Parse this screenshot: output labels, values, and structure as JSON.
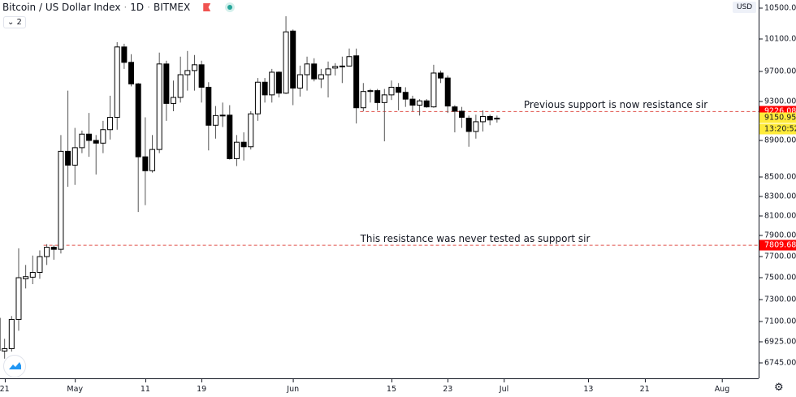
{
  "header": {
    "title": "Bitcoin / US Dollar Index",
    "interval": "1D",
    "exchange": "BITMEX",
    "separator": "·",
    "collapse_label": "⌄ 2"
  },
  "price_axis": {
    "currency": "USD"
  },
  "colors": {
    "up_fill": "#ffffff",
    "down_fill": "#000000",
    "outline": "#000000",
    "line": "#e0524b",
    "label_red": "#ff0000",
    "label_yellow": "#ffeb3b"
  },
  "chart_data": {
    "type": "candlestick",
    "title": "Bitcoin / US Dollar Index · 1D · BITMEX",
    "scale": "log",
    "ylim": [
      6650,
      10560
    ],
    "y_ticks": [
      10500,
      10100,
      9700,
      9300,
      8900,
      8500,
      8300,
      8100,
      7900,
      7700,
      7500,
      7300,
      7100,
      6925,
      6745
    ],
    "y_tick_labels": [
      "10500.00",
      "10100.00",
      "9700.00",
      "9300.00",
      "8900.00",
      "8500.00",
      "8300.00",
      "8100.00",
      "7900.00",
      "7700.00",
      "7500.00",
      "7300.00",
      "7100.00",
      "6925.00",
      "6745.00"
    ],
    "x_ticks": [
      {
        "day": 1,
        "label": "21"
      },
      {
        "day": 11,
        "label": "May"
      },
      {
        "day": 21,
        "label": "11"
      },
      {
        "day": 29,
        "label": "19"
      },
      {
        "day": 42,
        "label": "Jun"
      },
      {
        "day": 56,
        "label": "15"
      },
      {
        "day": 64,
        "label": "23"
      },
      {
        "day": 72,
        "label": "Jul"
      },
      {
        "day": 84,
        "label": "13"
      },
      {
        "day": 92,
        "label": "21"
      },
      {
        "day": 103,
        "label": "Aug"
      }
    ],
    "x_range_days": [
      0,
      107
    ],
    "candles_start": "Apr 20",
    "ohlc": [
      [
        7130,
        7150,
        6840,
        6850
      ],
      [
        6845,
        6950,
        6780,
        6865
      ],
      [
        6865,
        7150,
        6840,
        7120
      ],
      [
        7120,
        7780,
        7020,
        7500
      ],
      [
        7490,
        7620,
        7400,
        7510
      ],
      [
        7505,
        7710,
        7440,
        7550
      ],
      [
        7550,
        7760,
        7490,
        7700
      ],
      [
        7700,
        7820,
        7620,
        7790
      ],
      [
        7790,
        7810,
        7670,
        7770
      ],
      [
        7770,
        8960,
        7730,
        8780
      ],
      [
        8780,
        9470,
        8400,
        8630
      ],
      [
        8630,
        9040,
        8420,
        8820
      ],
      [
        8820,
        9010,
        8760,
        8970
      ],
      [
        8970,
        9210,
        8720,
        8900
      ],
      [
        8900,
        8960,
        8530,
        8870
      ],
      [
        8870,
        9120,
        8760,
        9020
      ],
      [
        9020,
        9410,
        8910,
        9160
      ],
      [
        9160,
        10060,
        9020,
        10000
      ],
      [
        10000,
        10040,
        9730,
        9810
      ],
      [
        9810,
        9910,
        9520,
        9550
      ],
      [
        9550,
        9560,
        8140,
        8720
      ],
      [
        8720,
        9160,
        8210,
        8570
      ],
      [
        8570,
        8960,
        8550,
        8800
      ],
      [
        8800,
        9930,
        8760,
        9790
      ],
      [
        9790,
        9830,
        9120,
        9320
      ],
      [
        9320,
        9590,
        9230,
        9390
      ],
      [
        9390,
        9880,
        9330,
        9660
      ],
      [
        9660,
        9950,
        9470,
        9710
      ],
      [
        9710,
        9900,
        9470,
        9780
      ],
      [
        9780,
        9830,
        9330,
        9510
      ],
      [
        9510,
        9570,
        8790,
        9070
      ],
      [
        9070,
        9290,
        8920,
        9180
      ],
      [
        9180,
        9330,
        9050,
        9185
      ],
      [
        9185,
        9300,
        8690,
        8700
      ],
      [
        8700,
        8960,
        8620,
        8880
      ],
      [
        8880,
        8990,
        8680,
        8830
      ],
      [
        8830,
        9230,
        8800,
        9200
      ],
      [
        9200,
        9620,
        9120,
        9570
      ],
      [
        9570,
        9620,
        9330,
        9420
      ],
      [
        9420,
        9730,
        9330,
        9690
      ],
      [
        9690,
        9700,
        9390,
        9440
      ],
      [
        9440,
        10390,
        9430,
        10190
      ],
      [
        10200,
        10220,
        9300,
        9500
      ],
      [
        9500,
        9770,
        9400,
        9660
      ],
      [
        9660,
        9880,
        9470,
        9790
      ],
      [
        9790,
        9860,
        9580,
        9610
      ],
      [
        9610,
        9730,
        9500,
        9660
      ],
      [
        9660,
        9820,
        9390,
        9730
      ],
      [
        9740,
        9800,
        9650,
        9760
      ],
      [
        9760,
        9880,
        9560,
        9765
      ],
      [
        9765,
        9980,
        9760,
        9880
      ],
      [
        9890,
        9980,
        9090,
        9270
      ],
      [
        9270,
        9560,
        9230,
        9460
      ],
      [
        9460,
        9490,
        9330,
        9470
      ],
      [
        9470,
        9490,
        9240,
        9330
      ],
      [
        9330,
        9490,
        8890,
        9420
      ],
      [
        9420,
        9590,
        9360,
        9510
      ],
      [
        9510,
        9560,
        9240,
        9450
      ],
      [
        9450,
        9510,
        9280,
        9370
      ],
      [
        9370,
        9410,
        9230,
        9300
      ],
      [
        9300,
        9370,
        9180,
        9350
      ],
      [
        9350,
        9370,
        9270,
        9280
      ],
      [
        9280,
        9780,
        9270,
        9680
      ],
      [
        9680,
        9710,
        9560,
        9620
      ],
      [
        9620,
        9650,
        9210,
        9290
      ],
      [
        9280,
        9300,
        8990,
        9230
      ],
      [
        9230,
        9280,
        9040,
        9160
      ],
      [
        9150,
        9180,
        8830,
        9000
      ],
      [
        9000,
        9190,
        8920,
        9110
      ],
      [
        9110,
        9240,
        9000,
        9170
      ],
      [
        9170,
        9190,
        9070,
        9130
      ],
      [
        9140,
        9180,
        9100,
        9150.95
      ]
    ],
    "horizontal_lines": [
      {
        "price": 9226.08,
        "label": "9226.08",
        "from_day": 52,
        "text": "Previous support is now resistance sir"
      },
      {
        "price": 7809.68,
        "label": "7809.68",
        "from_day": 7,
        "text": "This resistance was never tested as support sir"
      }
    ],
    "last_price": {
      "price": 9150.95,
      "label": "9150.95",
      "countdown": "13:20:52"
    }
  }
}
